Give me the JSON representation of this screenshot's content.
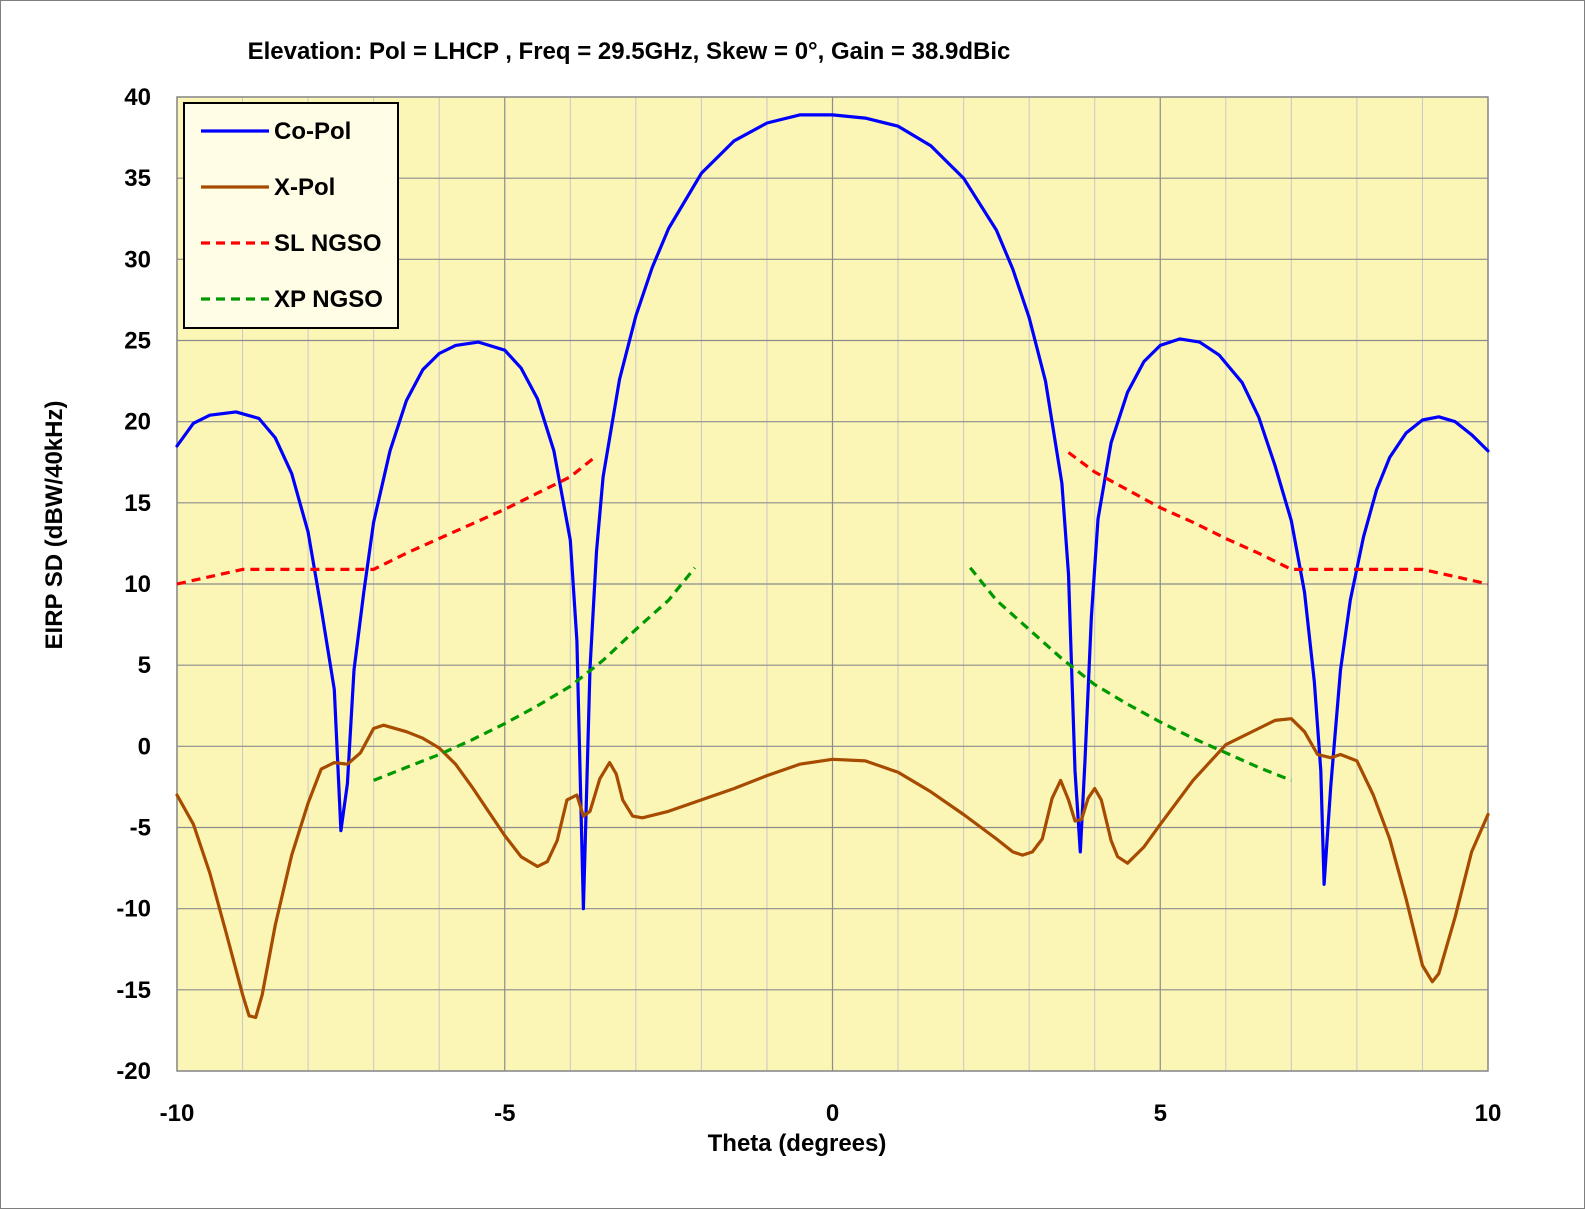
{
  "chart_data": {
    "type": "line",
    "title": "Elevation: Pol =  LHCP , Freq = 29.5GHz, Skew = 0°, Gain = 38.9dBic",
    "xlabel": "Theta (degrees)",
    "ylabel": "EIRP SD (dBW/40kHz)",
    "xlim": [
      -10,
      10
    ],
    "ylim": [
      -20,
      40
    ],
    "x_major_ticks": [
      -10,
      -5,
      0,
      5,
      10
    ],
    "x_tick_labels": [
      "-10",
      "-5",
      "0",
      "5",
      "10"
    ],
    "x_minor_step": 1,
    "y_ticks": [
      -20,
      -15,
      -10,
      -5,
      0,
      5,
      10,
      15,
      20,
      25,
      30,
      35,
      40
    ],
    "y_tick_labels": [
      "-20",
      "-15",
      "-10",
      "-5",
      "0",
      "5",
      "10",
      "15",
      "20",
      "25",
      "30",
      "35",
      "40"
    ],
    "grid": true,
    "plot_background": "#fbf5b6",
    "legend_position": "top-left",
    "series": [
      {
        "name": "Co-Pol",
        "color": "#0000ff",
        "dash": "solid",
        "points": [
          [
            -10,
            18.5
          ],
          [
            -9.75,
            19.9
          ],
          [
            -9.5,
            20.4
          ],
          [
            -9.1,
            20.6
          ],
          [
            -8.75,
            20.2
          ],
          [
            -8.5,
            19.0
          ],
          [
            -8.25,
            16.8
          ],
          [
            -8.0,
            13.2
          ],
          [
            -7.8,
            8.5
          ],
          [
            -7.6,
            3.5
          ],
          [
            -7.5,
            -5.2
          ],
          [
            -7.4,
            -2.3
          ],
          [
            -7.3,
            4.7
          ],
          [
            -7.15,
            9.5
          ],
          [
            -7.0,
            13.8
          ],
          [
            -6.75,
            18.2
          ],
          [
            -6.5,
            21.3
          ],
          [
            -6.25,
            23.2
          ],
          [
            -6.0,
            24.2
          ],
          [
            -5.75,
            24.7
          ],
          [
            -5.4,
            24.9
          ],
          [
            -5.0,
            24.4
          ],
          [
            -4.75,
            23.3
          ],
          [
            -4.5,
            21.4
          ],
          [
            -4.25,
            18.2
          ],
          [
            -4.0,
            12.7
          ],
          [
            -3.9,
            6.5
          ],
          [
            -3.8,
            -10.0
          ],
          [
            -3.7,
            4.8
          ],
          [
            -3.6,
            12.0
          ],
          [
            -3.5,
            16.6
          ],
          [
            -3.25,
            22.6
          ],
          [
            -3.0,
            26.5
          ],
          [
            -2.75,
            29.5
          ],
          [
            -2.5,
            31.9
          ],
          [
            -2.0,
            35.3
          ],
          [
            -1.5,
            37.3
          ],
          [
            -1.0,
            38.4
          ],
          [
            -0.5,
            38.9
          ],
          [
            0,
            38.9
          ],
          [
            0.5,
            38.7
          ],
          [
            1.0,
            38.2
          ],
          [
            1.5,
            37.0
          ],
          [
            2.0,
            35.0
          ],
          [
            2.5,
            31.8
          ],
          [
            2.75,
            29.4
          ],
          [
            3.0,
            26.4
          ],
          [
            3.25,
            22.5
          ],
          [
            3.5,
            16.2
          ],
          [
            3.6,
            10.6
          ],
          [
            3.7,
            -1.5
          ],
          [
            3.78,
            -6.5
          ],
          [
            3.85,
            -1.0
          ],
          [
            3.95,
            8.0
          ],
          [
            4.05,
            14.0
          ],
          [
            4.25,
            18.7
          ],
          [
            4.5,
            21.8
          ],
          [
            4.75,
            23.7
          ],
          [
            5.0,
            24.7
          ],
          [
            5.3,
            25.1
          ],
          [
            5.6,
            24.9
          ],
          [
            5.9,
            24.1
          ],
          [
            6.25,
            22.4
          ],
          [
            6.5,
            20.3
          ],
          [
            6.75,
            17.3
          ],
          [
            7.0,
            13.9
          ],
          [
            7.2,
            9.5
          ],
          [
            7.35,
            4.0
          ],
          [
            7.45,
            -1.5
          ],
          [
            7.5,
            -8.5
          ],
          [
            7.6,
            -2.5
          ],
          [
            7.75,
            4.7
          ],
          [
            7.9,
            9.0
          ],
          [
            8.1,
            12.9
          ],
          [
            8.3,
            15.8
          ],
          [
            8.5,
            17.8
          ],
          [
            8.75,
            19.3
          ],
          [
            9.0,
            20.1
          ],
          [
            9.25,
            20.3
          ],
          [
            9.5,
            20.0
          ],
          [
            9.75,
            19.2
          ],
          [
            10,
            18.2
          ]
        ]
      },
      {
        "name": "X-Pol",
        "color": "#a64b00",
        "dash": "solid",
        "points": [
          [
            -10,
            -3.0
          ],
          [
            -9.75,
            -4.8
          ],
          [
            -9.5,
            -7.8
          ],
          [
            -9.25,
            -11.5
          ],
          [
            -9.0,
            -15.3
          ],
          [
            -8.9,
            -16.6
          ],
          [
            -8.8,
            -16.7
          ],
          [
            -8.7,
            -15.3
          ],
          [
            -8.5,
            -11.0
          ],
          [
            -8.25,
            -6.7
          ],
          [
            -8.0,
            -3.5
          ],
          [
            -7.8,
            -1.4
          ],
          [
            -7.6,
            -1.0
          ],
          [
            -7.4,
            -1.1
          ],
          [
            -7.2,
            -0.4
          ],
          [
            -7.0,
            1.1
          ],
          [
            -6.85,
            1.3
          ],
          [
            -6.5,
            0.9
          ],
          [
            -6.25,
            0.5
          ],
          [
            -6.0,
            -0.1
          ],
          [
            -5.75,
            -1.1
          ],
          [
            -5.5,
            -2.5
          ],
          [
            -5.25,
            -4.0
          ],
          [
            -5.0,
            -5.5
          ],
          [
            -4.75,
            -6.8
          ],
          [
            -4.5,
            -7.4
          ],
          [
            -4.35,
            -7.1
          ],
          [
            -4.2,
            -5.8
          ],
          [
            -4.05,
            -3.3
          ],
          [
            -3.9,
            -3.0
          ],
          [
            -3.8,
            -4.3
          ],
          [
            -3.7,
            -4.0
          ],
          [
            -3.55,
            -2.0
          ],
          [
            -3.4,
            -1.0
          ],
          [
            -3.3,
            -1.7
          ],
          [
            -3.2,
            -3.3
          ],
          [
            -3.05,
            -4.3
          ],
          [
            -2.9,
            -4.4
          ],
          [
            -2.5,
            -4.0
          ],
          [
            -2.0,
            -3.3
          ],
          [
            -1.5,
            -2.6
          ],
          [
            -1.0,
            -1.8
          ],
          [
            -0.5,
            -1.1
          ],
          [
            0,
            -0.8
          ],
          [
            0.5,
            -0.9
          ],
          [
            1.0,
            -1.6
          ],
          [
            1.5,
            -2.8
          ],
          [
            2.0,
            -4.2
          ],
          [
            2.5,
            -5.7
          ],
          [
            2.75,
            -6.5
          ],
          [
            2.9,
            -6.7
          ],
          [
            3.05,
            -6.5
          ],
          [
            3.2,
            -5.7
          ],
          [
            3.35,
            -3.2
          ],
          [
            3.48,
            -2.1
          ],
          [
            3.6,
            -3.3
          ],
          [
            3.7,
            -4.6
          ],
          [
            3.8,
            -4.5
          ],
          [
            3.9,
            -3.2
          ],
          [
            4.0,
            -2.6
          ],
          [
            4.1,
            -3.3
          ],
          [
            4.25,
            -5.8
          ],
          [
            4.35,
            -6.8
          ],
          [
            4.5,
            -7.2
          ],
          [
            4.75,
            -6.2
          ],
          [
            5.0,
            -4.8
          ],
          [
            5.5,
            -2.1
          ],
          [
            6.0,
            0.1
          ],
          [
            6.5,
            1.1
          ],
          [
            6.75,
            1.6
          ],
          [
            7.0,
            1.7
          ],
          [
            7.2,
            0.9
          ],
          [
            7.4,
            -0.5
          ],
          [
            7.6,
            -0.7
          ],
          [
            7.75,
            -0.5
          ],
          [
            8.0,
            -0.9
          ],
          [
            8.25,
            -3.0
          ],
          [
            8.5,
            -5.7
          ],
          [
            8.75,
            -9.4
          ],
          [
            9.0,
            -13.5
          ],
          [
            9.15,
            -14.5
          ],
          [
            9.25,
            -14.0
          ],
          [
            9.5,
            -10.5
          ],
          [
            9.75,
            -6.5
          ],
          [
            10,
            -4.2
          ]
        ]
      },
      {
        "name": "SL NGSO",
        "color": "#ff0000",
        "dash": "dashed",
        "segments": [
          [
            [
              -10,
              10.0
            ],
            [
              -9.0,
              10.9
            ],
            [
              -7.0,
              10.9
            ],
            [
              -6.75,
              11.4
            ],
            [
              -6.5,
              11.9
            ],
            [
              -6.0,
              12.8
            ],
            [
              -5.5,
              13.7
            ],
            [
              -5.0,
              14.6
            ],
            [
              -4.5,
              15.6
            ],
            [
              -4.0,
              16.6
            ],
            [
              -3.6,
              17.9
            ]
          ],
          [
            [
              3.6,
              18.1
            ],
            [
              4.0,
              16.9
            ],
            [
              4.5,
              15.8
            ],
            [
              5.0,
              14.7
            ],
            [
              5.5,
              13.8
            ],
            [
              6.0,
              12.8
            ],
            [
              6.5,
              11.9
            ],
            [
              6.75,
              11.4
            ],
            [
              7.0,
              10.9
            ],
            [
              9.0,
              10.9
            ],
            [
              10,
              10.0
            ]
          ]
        ]
      },
      {
        "name": "XP NGSO",
        "color": "#009900",
        "dash": "dashed",
        "segments": [
          [
            [
              -7.0,
              -2.1
            ],
            [
              -6.5,
              -1.3
            ],
            [
              -6.0,
              -0.5
            ],
            [
              -5.5,
              0.4
            ],
            [
              -5.0,
              1.4
            ],
            [
              -4.5,
              2.5
            ],
            [
              -4.0,
              3.7
            ],
            [
              -3.5,
              5.3
            ],
            [
              -3.0,
              7.2
            ],
            [
              -2.5,
              9.0
            ],
            [
              -2.1,
              11.0
            ]
          ],
          [
            [
              2.1,
              11.0
            ],
            [
              2.5,
              9.0
            ],
            [
              3.0,
              7.2
            ],
            [
              3.5,
              5.4
            ],
            [
              4.0,
              3.8
            ],
            [
              4.5,
              2.6
            ],
            [
              5.0,
              1.5
            ],
            [
              5.5,
              0.5
            ],
            [
              6.0,
              -0.4
            ],
            [
              6.5,
              -1.3
            ],
            [
              7.0,
              -2.1
            ]
          ]
        ]
      }
    ]
  }
}
